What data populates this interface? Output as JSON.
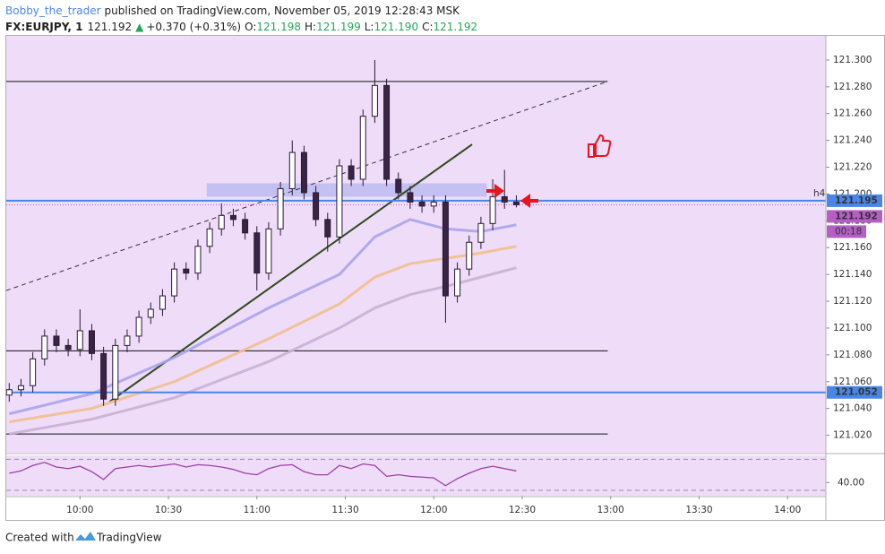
{
  "header": {
    "author": "Bobby_the_trader",
    "published": "published on TradingView.com, November 05, 2019 12:28:43 MSK",
    "symbol": "FX:EURJPY, 1",
    "last": "121.192",
    "arrow": "▲",
    "change": "+0.370 (+0.31%)",
    "ohlc": [
      {
        "label": "O:",
        "value": "121.198"
      },
      {
        "label": "H:",
        "value": "121.199"
      },
      {
        "label": "L:",
        "value": "121.190"
      },
      {
        "label": "C:",
        "value": "121.192"
      }
    ]
  },
  "chart_data": {
    "type": "candlestick",
    "x": [
      "09:36",
      "09:40",
      "09:44",
      "09:48",
      "09:52",
      "09:56",
      "10:00",
      "10:04",
      "10:08",
      "10:12",
      "10:16",
      "10:20",
      "10:24",
      "10:28",
      "10:32",
      "10:36",
      "10:40",
      "10:44",
      "10:48",
      "10:52",
      "10:56",
      "11:00",
      "11:04",
      "11:08",
      "11:12",
      "11:16",
      "11:20",
      "11:24",
      "11:28",
      "11:32",
      "11:36",
      "11:40",
      "11:44",
      "11:48",
      "11:52",
      "11:56",
      "12:00",
      "12:04",
      "12:08",
      "12:12",
      "12:16",
      "12:20",
      "12:24",
      "12:28"
    ],
    "open": [
      121.05,
      121.054,
      121.057,
      121.077,
      121.094,
      121.087,
      121.084,
      121.098,
      121.081,
      121.047,
      121.087,
      121.094,
      121.108,
      121.114,
      121.124,
      121.144,
      121.141,
      121.161,
      121.174,
      121.184,
      121.181,
      121.171,
      121.141,
      121.174,
      121.204,
      121.231,
      121.201,
      121.181,
      121.168,
      121.221,
      121.211,
      121.258,
      121.281,
      121.211,
      121.201,
      121.194,
      121.191,
      121.194,
      121.124,
      121.144,
      121.164,
      121.178,
      121.198,
      121.194
    ],
    "high": [
      121.059,
      121.062,
      121.082,
      121.099,
      121.099,
      121.092,
      121.114,
      121.103,
      121.086,
      121.092,
      121.099,
      121.113,
      121.119,
      121.129,
      121.149,
      121.149,
      121.166,
      121.179,
      121.193,
      121.189,
      121.186,
      121.176,
      121.179,
      121.209,
      121.24,
      121.236,
      121.206,
      121.186,
      121.226,
      121.226,
      121.263,
      121.3,
      121.286,
      121.216,
      121.206,
      121.199,
      121.199,
      121.199,
      121.149,
      121.169,
      121.183,
      121.211,
      121.218,
      121.199
    ],
    "low": [
      121.045,
      121.049,
      121.052,
      121.072,
      121.082,
      121.079,
      121.079,
      121.076,
      121.042,
      121.042,
      121.082,
      121.089,
      121.103,
      121.109,
      121.119,
      121.136,
      121.136,
      121.156,
      121.169,
      121.176,
      121.166,
      121.128,
      121.136,
      121.169,
      121.199,
      121.196,
      121.176,
      121.157,
      121.163,
      121.206,
      121.206,
      121.253,
      121.206,
      121.196,
      121.189,
      121.186,
      121.186,
      121.104,
      121.119,
      121.139,
      121.159,
      121.173,
      121.189,
      121.19
    ],
    "close": [
      121.054,
      121.057,
      121.077,
      121.094,
      121.087,
      121.084,
      121.098,
      121.081,
      121.047,
      121.087,
      121.094,
      121.108,
      121.114,
      121.124,
      121.144,
      121.141,
      121.161,
      121.174,
      121.184,
      121.181,
      121.171,
      121.141,
      121.174,
      121.204,
      121.231,
      121.201,
      121.181,
      121.168,
      121.221,
      121.211,
      121.258,
      121.281,
      121.211,
      121.201,
      121.194,
      121.191,
      121.194,
      121.124,
      121.144,
      121.164,
      121.178,
      121.198,
      121.194,
      121.192
    ],
    "up_color": "#ffffff",
    "down_color": "#3a2446",
    "wick_color": "#2a1833",
    "series": [
      {
        "color": "#a9a3ee",
        "x": [
          "09:36",
          "10:04",
          "10:32",
          "11:04",
          "11:28",
          "11:40",
          "11:52",
          "12:04",
          "12:16",
          "12:28"
        ],
        "values": [
          121.036,
          121.051,
          121.078,
          121.115,
          121.14,
          121.168,
          121.181,
          121.174,
          121.172,
          121.177
        ]
      },
      {
        "color": "#f0bf8e",
        "x": [
          "09:36",
          "10:04",
          "10:32",
          "11:04",
          "11:28",
          "11:40",
          "11:52",
          "12:04",
          "12:16",
          "12:28"
        ],
        "values": [
          121.03,
          121.04,
          121.06,
          121.092,
          121.118,
          121.138,
          121.148,
          121.152,
          121.156,
          121.161
        ]
      },
      {
        "color": "#c9afd5",
        "x": [
          "09:36",
          "10:04",
          "10:32",
          "11:04",
          "11:28",
          "11:40",
          "11:52",
          "12:04",
          "12:16",
          "12:28"
        ],
        "values": [
          121.021,
          121.032,
          121.048,
          121.075,
          121.1,
          121.115,
          121.125,
          121.131,
          121.138,
          121.145
        ]
      }
    ],
    "xlim": [
      "09:35",
      "14:13"
    ],
    "xticks": [
      "10:00",
      "10:30",
      "11:00",
      "11:30",
      "12:00",
      "12:30",
      "13:00",
      "13:30",
      "14:00"
    ],
    "ylim": [
      121.007,
      121.318
    ],
    "yticks": [
      {
        "value": 121.02,
        "label": "121.020"
      },
      {
        "value": 121.04,
        "label": "121.040"
      },
      {
        "value": 121.06,
        "label": "121.060"
      },
      {
        "value": 121.08,
        "label": "121.080"
      },
      {
        "value": 121.1,
        "label": "121.100"
      },
      {
        "value": 121.12,
        "label": "121.120"
      },
      {
        "value": 121.14,
        "label": "121.140"
      },
      {
        "value": 121.16,
        "label": "121.160"
      },
      {
        "value": 121.18,
        "label": "121.180"
      },
      {
        "value": 121.2,
        "label": "121.200"
      },
      {
        "value": 121.22,
        "label": "121.220"
      },
      {
        "value": 121.24,
        "label": "121.240"
      },
      {
        "value": 121.26,
        "label": "121.260"
      },
      {
        "value": 121.28,
        "label": "121.280"
      },
      {
        "value": 121.3,
        "label": "121.300"
      }
    ],
    "hlines": [
      {
        "price": 121.284,
        "from": "09:35",
        "to": "12:59",
        "color": "#111111"
      },
      {
        "price": 121.083,
        "from": "09:35",
        "to": "12:59",
        "color": "#111111"
      },
      {
        "price": 121.021,
        "from": "09:35",
        "to": "12:59",
        "color": "#111111"
      }
    ],
    "levels": [
      {
        "price": 121.195,
        "label": "121.195",
        "color": "#4a86e8",
        "note": "h4"
      },
      {
        "price": 121.052,
        "label": "121.052",
        "color": "#4a86e8"
      }
    ],
    "trendlines": [
      {
        "from": [
          "09:35",
          121.128
        ],
        "to": [
          "12:59",
          121.284
        ],
        "color": "#333333",
        "dashed": true
      },
      {
        "from": [
          "10:10",
          121.045
        ],
        "to": [
          "12:13",
          121.237
        ],
        "color": "#2e4a1e",
        "dashed": false
      }
    ],
    "zone": {
      "from": "10:43",
      "to": "12:18",
      "top": 121.208,
      "bottom": 121.198,
      "color": "#b9b9f0"
    },
    "last_price": {
      "value": 121.192,
      "label": "121.192",
      "countdown": "00:18",
      "color": "#b55fc4"
    },
    "oscillator": {
      "color": "#9c3fa6",
      "ylim": [
        23,
        75
      ],
      "yticks": [
        {
          "value": 40,
          "label": "40.00"
        }
      ],
      "levels": [
        70,
        30
      ],
      "values": [
        52,
        55,
        62,
        66,
        60,
        58,
        61,
        54,
        44,
        58,
        60,
        62,
        60,
        62,
        64,
        60,
        63,
        62,
        60,
        57,
        52,
        50,
        58,
        62,
        63,
        54,
        50,
        50,
        62,
        58,
        64,
        62,
        48,
        50,
        48,
        47,
        46,
        36,
        45,
        52,
        58,
        61,
        58,
        55
      ]
    }
  },
  "footer": {
    "created": "Created with",
    "brand": "TradingView"
  }
}
